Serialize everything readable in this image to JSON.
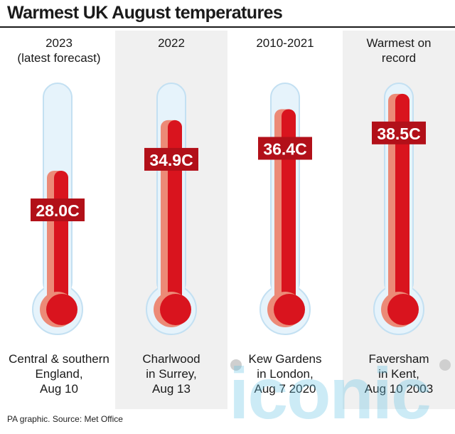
{
  "chart_data": {
    "type": "bar",
    "title": "Warmest UK August temperatures",
    "unit": "C",
    "categories": [
      "2023\n(latest forecast)",
      "2022",
      "2010-2021",
      "Warmest on\nrecord"
    ],
    "values": [
      28.0,
      34.9,
      36.4,
      38.5
    ],
    "value_labels": [
      "28.0C",
      "34.9C",
      "36.4C",
      "38.5C"
    ],
    "locations": [
      "Central & southern\nEngland,\nAug 10",
      "Charlwood\nin Surrey,\nAug 13",
      "Kew Gardens\nin London,\nAug 7 2020",
      "Faversham\nin Kent,\nAug 10 2003"
    ],
    "source": "PA graphic. Source: Met Office",
    "colors": {
      "fill": "#d9141e",
      "fill_light": "#ec8a77",
      "tube": "#e6f3fb",
      "tube_border": "#c3e0f2",
      "label_bg": "#b21019",
      "panel": "#f0f0f0"
    }
  },
  "watermark": "iconic"
}
